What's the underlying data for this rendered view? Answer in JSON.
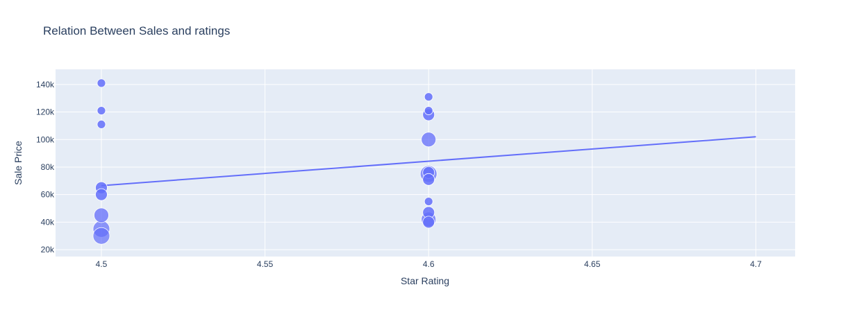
{
  "chart_data": {
    "type": "scatter",
    "title": "Relation Between Sales and ratings",
    "xlabel": "Star Rating",
    "ylabel": "Sale Price",
    "xlim": [
      4.486,
      4.712
    ],
    "ylim": [
      15000,
      151000
    ],
    "x_ticks": [
      4.5,
      4.55,
      4.6,
      4.65,
      4.7
    ],
    "x_tick_labels": [
      "4.5",
      "4.55",
      "4.6",
      "4.65",
      "4.7"
    ],
    "y_ticks": [
      20000,
      40000,
      60000,
      80000,
      100000,
      120000,
      140000
    ],
    "y_tick_labels": [
      "20k",
      "40k",
      "60k",
      "80k",
      "100k",
      "120k",
      "140k"
    ],
    "grid": true,
    "colors": {
      "marker": "#636efa",
      "plot_bg": "#e5ecf6",
      "grid": "#ffffff",
      "text": "#2a3f5f"
    },
    "points": [
      {
        "x": 4.5,
        "y": 141000,
        "size": 1
      },
      {
        "x": 4.5,
        "y": 121000,
        "size": 1
      },
      {
        "x": 4.5,
        "y": 111000,
        "size": 1
      },
      {
        "x": 4.5,
        "y": 65000,
        "size": 2
      },
      {
        "x": 4.5,
        "y": 60000,
        "size": 2
      },
      {
        "x": 4.5,
        "y": 45000,
        "size": 3
      },
      {
        "x": 4.5,
        "y": 35000,
        "size": 4
      },
      {
        "x": 4.5,
        "y": 30000,
        "size": 4
      },
      {
        "x": 4.6,
        "y": 131000,
        "size": 1
      },
      {
        "x": 4.6,
        "y": 121000,
        "size": 1
      },
      {
        "x": 4.6,
        "y": 118000,
        "size": 2
      },
      {
        "x": 4.6,
        "y": 100000,
        "size": 3
      },
      {
        "x": 4.6,
        "y": 75000,
        "size": 4
      },
      {
        "x": 4.6,
        "y": 76000,
        "size": 2
      },
      {
        "x": 4.6,
        "y": 71000,
        "size": 2
      },
      {
        "x": 4.6,
        "y": 55000,
        "size": 1
      },
      {
        "x": 4.6,
        "y": 47000,
        "size": 2
      },
      {
        "x": 4.6,
        "y": 42000,
        "size": 3
      },
      {
        "x": 4.6,
        "y": 40000,
        "size": 2
      }
    ],
    "trendline": {
      "x": [
        4.5,
        4.7
      ],
      "y": [
        66500,
        102000
      ]
    }
  }
}
